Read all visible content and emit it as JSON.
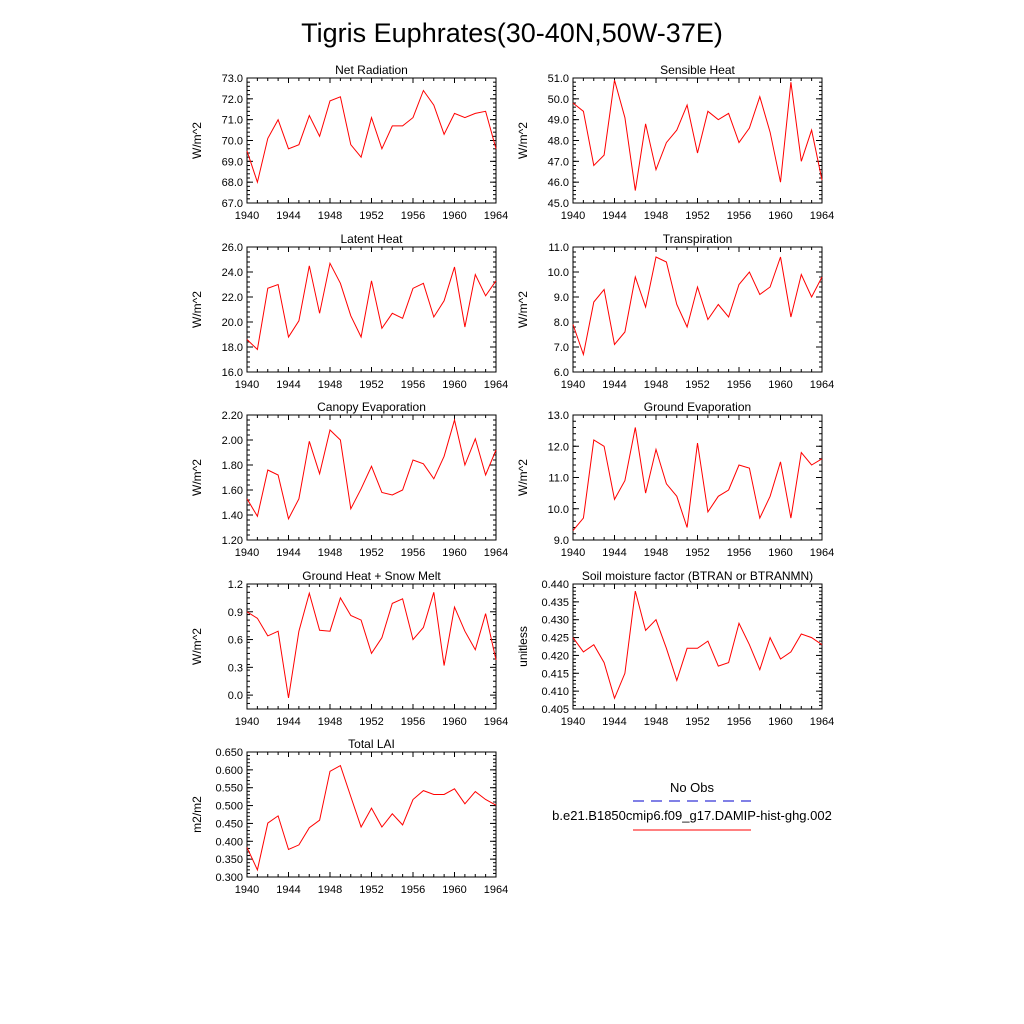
{
  "figure_title": "Tigris Euphrates(30-40N,50W-37E)",
  "legend": {
    "entries": [
      {
        "label": "No Obs",
        "color": "#0000cc",
        "style": "dashed"
      },
      {
        "label": "b.e21.B1850cmip6.f09_g17.DAMIP-hist-ghg.002",
        "color": "#ff0000",
        "style": "solid"
      }
    ]
  },
  "colors": {
    "series": "#ff0000",
    "obs": "#0000cc",
    "axis": "#000000"
  },
  "chart_data": [
    {
      "type": "line",
      "title": "Net Radiation",
      "xlabel": "",
      "ylabel": "W/m^2",
      "xlim": [
        1940,
        1964
      ],
      "ylim": [
        67.0,
        73.0
      ],
      "xticks": [
        "1940",
        "1944",
        "1948",
        "1952",
        "1956",
        "1960",
        "1964"
      ],
      "yticks": [
        "67.0",
        "68.0",
        "69.0",
        "70.0",
        "71.0",
        "72.0",
        "73.0"
      ],
      "ytick_values": [
        67,
        68,
        69,
        70,
        71,
        72,
        73
      ],
      "x": [
        1940,
        1941,
        1942,
        1943,
        1944,
        1945,
        1946,
        1947,
        1948,
        1949,
        1950,
        1951,
        1952,
        1953,
        1954,
        1955,
        1956,
        1957,
        1958,
        1959,
        1960,
        1961,
        1962,
        1963,
        1964
      ],
      "values": [
        69.5,
        68.0,
        70.1,
        71.0,
        69.6,
        69.8,
        71.2,
        70.2,
        71.9,
        72.1,
        69.8,
        69.2,
        71.1,
        69.6,
        70.7,
        70.7,
        71.1,
        72.4,
        71.7,
        70.3,
        71.3,
        71.1,
        71.3,
        71.4,
        69.6
      ]
    },
    {
      "type": "line",
      "title": "Sensible Heat",
      "xlabel": "",
      "ylabel": "W/m^2",
      "xlim": [
        1940,
        1964
      ],
      "ylim": [
        45.0,
        51.0
      ],
      "xticks": [
        "1940",
        "1944",
        "1948",
        "1952",
        "1956",
        "1960",
        "1964"
      ],
      "yticks": [
        "45.0",
        "46.0",
        "47.0",
        "48.0",
        "49.0",
        "50.0",
        "51.0"
      ],
      "ytick_values": [
        45,
        46,
        47,
        48,
        49,
        50,
        51
      ],
      "x": [
        1940,
        1941,
        1942,
        1943,
        1944,
        1945,
        1946,
        1947,
        1948,
        1949,
        1950,
        1951,
        1952,
        1953,
        1954,
        1955,
        1956,
        1957,
        1958,
        1959,
        1960,
        1961,
        1962,
        1963,
        1964
      ],
      "values": [
        49.8,
        49.4,
        46.8,
        47.3,
        50.9,
        49.1,
        45.6,
        48.8,
        46.6,
        47.9,
        48.5,
        49.7,
        47.4,
        49.4,
        49.0,
        49.3,
        47.9,
        48.6,
        50.1,
        48.4,
        46.0,
        50.8,
        47.0,
        48.5,
        46.1
      ]
    },
    {
      "type": "line",
      "title": "Latent Heat",
      "xlabel": "",
      "ylabel": "W/m^2",
      "xlim": [
        1940,
        1964
      ],
      "ylim": [
        16.0,
        26.0
      ],
      "xticks": [
        "1940",
        "1944",
        "1948",
        "1952",
        "1956",
        "1960",
        "1964"
      ],
      "yticks": [
        "16.0",
        "18.0",
        "20.0",
        "22.0",
        "24.0",
        "26.0"
      ],
      "ytick_values": [
        16,
        18,
        20,
        22,
        24,
        26
      ],
      "x": [
        1940,
        1941,
        1942,
        1943,
        1944,
        1945,
        1946,
        1947,
        1948,
        1949,
        1950,
        1951,
        1952,
        1953,
        1954,
        1955,
        1956,
        1957,
        1958,
        1959,
        1960,
        1961,
        1962,
        1963,
        1964
      ],
      "values": [
        18.6,
        17.8,
        22.7,
        23.0,
        18.8,
        20.1,
        24.5,
        20.7,
        24.7,
        23.1,
        20.5,
        18.8,
        23.3,
        19.5,
        20.7,
        20.3,
        22.7,
        23.1,
        20.4,
        21.7,
        24.4,
        19.6,
        23.8,
        22.1,
        23.3
      ]
    },
    {
      "type": "line",
      "title": "Transpiration",
      "xlabel": "",
      "ylabel": "W/m^2",
      "xlim": [
        1940,
        1964
      ],
      "ylim": [
        6.0,
        11.0
      ],
      "xticks": [
        "1940",
        "1944",
        "1948",
        "1952",
        "1956",
        "1960",
        "1964"
      ],
      "yticks": [
        "6.0",
        "7.0",
        "8.0",
        "9.0",
        "10.0",
        "11.0"
      ],
      "ytick_values": [
        6,
        7,
        8,
        9,
        10,
        11
      ],
      "x": [
        1940,
        1941,
        1942,
        1943,
        1944,
        1945,
        1946,
        1947,
        1948,
        1949,
        1950,
        1951,
        1952,
        1953,
        1954,
        1955,
        1956,
        1957,
        1958,
        1959,
        1960,
        1961,
        1962,
        1963,
        1964
      ],
      "values": [
        7.9,
        6.7,
        8.8,
        9.3,
        7.1,
        7.6,
        9.8,
        8.6,
        10.6,
        10.4,
        8.7,
        7.8,
        9.4,
        8.1,
        8.7,
        8.2,
        9.5,
        10.0,
        9.1,
        9.4,
        10.6,
        8.2,
        9.9,
        9.0,
        9.8
      ]
    },
    {
      "type": "line",
      "title": "Canopy Evaporation",
      "xlabel": "",
      "ylabel": "W/m^2",
      "xlim": [
        1940,
        1964
      ],
      "ylim": [
        1.2,
        2.2
      ],
      "xticks": [
        "1940",
        "1944",
        "1948",
        "1952",
        "1956",
        "1960",
        "1964"
      ],
      "yticks": [
        "1.20",
        "1.40",
        "1.60",
        "1.80",
        "2.00",
        "2.20"
      ],
      "ytick_values": [
        1.2,
        1.4,
        1.6,
        1.8,
        2.0,
        2.2
      ],
      "x": [
        1940,
        1941,
        1942,
        1943,
        1944,
        1945,
        1946,
        1947,
        1948,
        1949,
        1950,
        1951,
        1952,
        1953,
        1954,
        1955,
        1956,
        1957,
        1958,
        1959,
        1960,
        1961,
        1962,
        1963,
        1964
      ],
      "values": [
        1.53,
        1.39,
        1.76,
        1.72,
        1.37,
        1.53,
        1.99,
        1.73,
        2.08,
        2.0,
        1.45,
        1.61,
        1.79,
        1.58,
        1.56,
        1.6,
        1.84,
        1.81,
        1.69,
        1.87,
        2.16,
        1.8,
        2.01,
        1.72,
        1.92
      ]
    },
    {
      "type": "line",
      "title": "Ground Evaporation",
      "xlabel": "",
      "ylabel": "W/m^2",
      "xlim": [
        1940,
        1964
      ],
      "ylim": [
        9.0,
        13.0
      ],
      "xticks": [
        "1940",
        "1944",
        "1948",
        "1952",
        "1956",
        "1960",
        "1964"
      ],
      "yticks": [
        "9.0",
        "10.0",
        "11.0",
        "12.0",
        "13.0"
      ],
      "ytick_values": [
        9,
        10,
        11,
        12,
        13
      ],
      "x": [
        1940,
        1941,
        1942,
        1943,
        1944,
        1945,
        1946,
        1947,
        1948,
        1949,
        1950,
        1951,
        1952,
        1953,
        1954,
        1955,
        1956,
        1957,
        1958,
        1959,
        1960,
        1961,
        1962,
        1963,
        1964
      ],
      "values": [
        9.3,
        9.7,
        12.2,
        12.0,
        10.3,
        10.9,
        12.6,
        10.5,
        11.9,
        10.8,
        10.4,
        9.4,
        12.1,
        9.9,
        10.4,
        10.6,
        11.4,
        11.3,
        9.7,
        10.4,
        11.5,
        9.7,
        11.8,
        11.4,
        11.6
      ]
    },
    {
      "type": "line",
      "title": "Ground Heat + Snow Melt",
      "xlabel": "",
      "ylabel": "W/m^2",
      "xlim": [
        1940,
        1964
      ],
      "ylim": [
        -0.15,
        1.2
      ],
      "xticks": [
        "1940",
        "1944",
        "1948",
        "1952",
        "1956",
        "1960",
        "1964"
      ],
      "yticks": [
        "0.0",
        "0.3",
        "0.6",
        "0.9",
        "1.2"
      ],
      "ytick_values": [
        0.0,
        0.3,
        0.6,
        0.9,
        1.2
      ],
      "x": [
        1940,
        1941,
        1942,
        1943,
        1944,
        1945,
        1946,
        1947,
        1948,
        1949,
        1950,
        1951,
        1952,
        1953,
        1954,
        1955,
        1956,
        1957,
        1958,
        1959,
        1960,
        1961,
        1962,
        1963,
        1964
      ],
      "values": [
        0.9,
        0.83,
        0.64,
        0.69,
        -0.03,
        0.69,
        1.1,
        0.7,
        0.69,
        1.05,
        0.86,
        0.81,
        0.45,
        0.62,
        0.99,
        1.04,
        0.6,
        0.73,
        1.11,
        0.32,
        0.95,
        0.69,
        0.49,
        0.88,
        0.38
      ]
    },
    {
      "type": "line",
      "title": "Soil moisture factor (BTRAN or BTRANMN)",
      "xlabel": "",
      "ylabel": "unitless",
      "xlim": [
        1940,
        1964
      ],
      "ylim": [
        0.405,
        0.44
      ],
      "xticks": [
        "1940",
        "1944",
        "1948",
        "1952",
        "1956",
        "1960",
        "1964"
      ],
      "yticks": [
        "0.405",
        "0.410",
        "0.415",
        "0.420",
        "0.425",
        "0.430",
        "0.435",
        "0.440"
      ],
      "ytick_values": [
        0.405,
        0.41,
        0.415,
        0.42,
        0.425,
        0.43,
        0.435,
        0.44
      ],
      "x": [
        1940,
        1941,
        1942,
        1943,
        1944,
        1945,
        1946,
        1947,
        1948,
        1949,
        1950,
        1951,
        1952,
        1953,
        1954,
        1955,
        1956,
        1957,
        1958,
        1959,
        1960,
        1961,
        1962,
        1963,
        1964
      ],
      "values": [
        0.425,
        0.421,
        0.423,
        0.418,
        0.408,
        0.415,
        0.438,
        0.427,
        0.43,
        0.422,
        0.413,
        0.422,
        0.422,
        0.424,
        0.417,
        0.418,
        0.429,
        0.423,
        0.416,
        0.425,
        0.419,
        0.421,
        0.426,
        0.425,
        0.423
      ]
    },
    {
      "type": "line",
      "title": "Total LAI",
      "xlabel": "",
      "ylabel": "m2/m2",
      "xlim": [
        1940,
        1964
      ],
      "ylim": [
        0.3,
        0.65
      ],
      "xticks": [
        "1940",
        "1944",
        "1948",
        "1952",
        "1956",
        "1960",
        "1964"
      ],
      "yticks": [
        "0.300",
        "0.350",
        "0.400",
        "0.450",
        "0.500",
        "0.550",
        "0.600",
        "0.650"
      ],
      "ytick_values": [
        0.3,
        0.35,
        0.4,
        0.45,
        0.5,
        0.55,
        0.6,
        0.65
      ],
      "x": [
        1940,
        1941,
        1942,
        1943,
        1944,
        1945,
        1946,
        1947,
        1948,
        1949,
        1950,
        1951,
        1952,
        1953,
        1954,
        1955,
        1956,
        1957,
        1958,
        1959,
        1960,
        1961,
        1962,
        1963,
        1964
      ],
      "values": [
        0.383,
        0.32,
        0.451,
        0.471,
        0.377,
        0.39,
        0.438,
        0.459,
        0.596,
        0.612,
        0.525,
        0.44,
        0.493,
        0.44,
        0.477,
        0.446,
        0.517,
        0.542,
        0.531,
        0.531,
        0.547,
        0.505,
        0.539,
        0.517,
        0.501
      ]
    }
  ]
}
